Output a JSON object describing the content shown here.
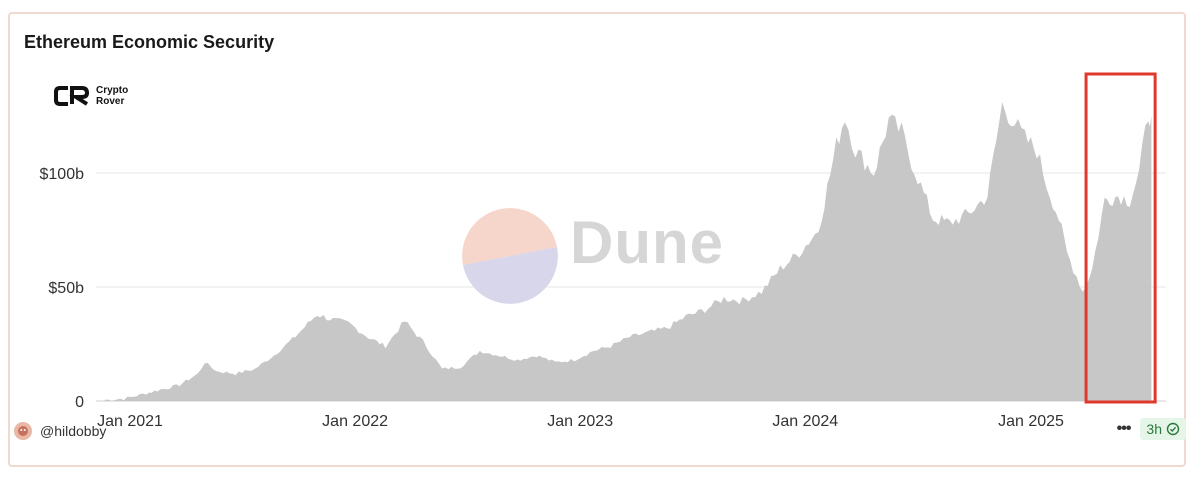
{
  "card": {
    "title": "Ethereum Economic Security"
  },
  "logo": {
    "line1": "Crypto",
    "line2": "Rover"
  },
  "watermark": {
    "text": "Dune"
  },
  "footer": {
    "author": "@hildobby",
    "refresh": "3h"
  },
  "colors": {
    "area": "#c4c4c4",
    "grid": "#e6e6e6",
    "highlight": "#e1382e",
    "wm_top": "#f6d5cb",
    "wm_bottom": "#d7d6ea"
  },
  "chart_data": {
    "type": "area",
    "title": "Ethereum Economic Security",
    "x_ticks": [
      "Jan 2021",
      "Jan 2022",
      "Jan 2023",
      "Jan 2024",
      "Jan 2025"
    ],
    "y_ticks": [
      "0",
      "$50b",
      "$100b"
    ],
    "ylim": [
      0,
      140
    ],
    "xlim": [
      "2021-01-01",
      "2025-07-25"
    ],
    "grid": true,
    "unit": "billion USD",
    "series": [
      {
        "values": [
          [
            "2020-12-01",
            0.5
          ],
          [
            "2021-01-01",
            1
          ],
          [
            "2021-02-01",
            3
          ],
          [
            "2021-03-01",
            5
          ],
          [
            "2021-04-01",
            7
          ],
          [
            "2021-05-01",
            12
          ],
          [
            "2021-05-12",
            17
          ],
          [
            "2021-06-01",
            13
          ],
          [
            "2021-07-01",
            12
          ],
          [
            "2021-08-01",
            14
          ],
          [
            "2021-09-01",
            20
          ],
          [
            "2021-10-01",
            27
          ],
          [
            "2021-11-10",
            38
          ],
          [
            "2021-12-01",
            36
          ],
          [
            "2022-01-01",
            34
          ],
          [
            "2022-02-01",
            28
          ],
          [
            "2022-03-01",
            24
          ],
          [
            "2022-04-01",
            35
          ],
          [
            "2022-05-01",
            26
          ],
          [
            "2022-06-01",
            14
          ],
          [
            "2022-07-01",
            15
          ],
          [
            "2022-08-01",
            22
          ],
          [
            "2022-09-01",
            20
          ],
          [
            "2022-10-01",
            18
          ],
          [
            "2022-11-01",
            20
          ],
          [
            "2022-12-01",
            17
          ],
          [
            "2023-01-01",
            18
          ],
          [
            "2023-02-01",
            22
          ],
          [
            "2023-03-01",
            24
          ],
          [
            "2023-04-01",
            28
          ],
          [
            "2023-05-01",
            30
          ],
          [
            "2023-06-01",
            32
          ],
          [
            "2023-07-01",
            37
          ],
          [
            "2023-08-01",
            40
          ],
          [
            "2023-09-01",
            45
          ],
          [
            "2023-10-01",
            44
          ],
          [
            "2023-11-01",
            48
          ],
          [
            "2023-12-01",
            58
          ],
          [
            "2024-01-01",
            65
          ],
          [
            "2024-02-01",
            75
          ],
          [
            "2024-03-01",
            112
          ],
          [
            "2024-03-15",
            125
          ],
          [
            "2024-04-01",
            110
          ],
          [
            "2024-05-01",
            100
          ],
          [
            "2024-05-25",
            123
          ],
          [
            "2024-06-15",
            118
          ],
          [
            "2024-07-01",
            105
          ],
          [
            "2024-08-05",
            80
          ],
          [
            "2024-09-01",
            78
          ],
          [
            "2024-10-01",
            82
          ],
          [
            "2024-11-01",
            90
          ],
          [
            "2024-11-25",
            130
          ],
          [
            "2024-12-15",
            122
          ],
          [
            "2025-01-01",
            115
          ],
          [
            "2025-01-20",
            110
          ],
          [
            "2025-02-05",
            95
          ],
          [
            "2025-02-25",
            80
          ],
          [
            "2025-03-10",
            65
          ],
          [
            "2025-04-05",
            48
          ],
          [
            "2025-04-20",
            58
          ],
          [
            "2025-05-10",
            88
          ],
          [
            "2025-06-01",
            90
          ],
          [
            "2025-06-20",
            88
          ],
          [
            "2025-07-05",
            100
          ],
          [
            "2025-07-20",
            126
          ],
          [
            "2025-07-25",
            125
          ]
        ]
      }
    ],
    "annotations": [
      {
        "type": "rectangle",
        "color": "#e1382e",
        "x_from": "2025-04-10",
        "x_to": "2025-07-31"
      }
    ]
  }
}
